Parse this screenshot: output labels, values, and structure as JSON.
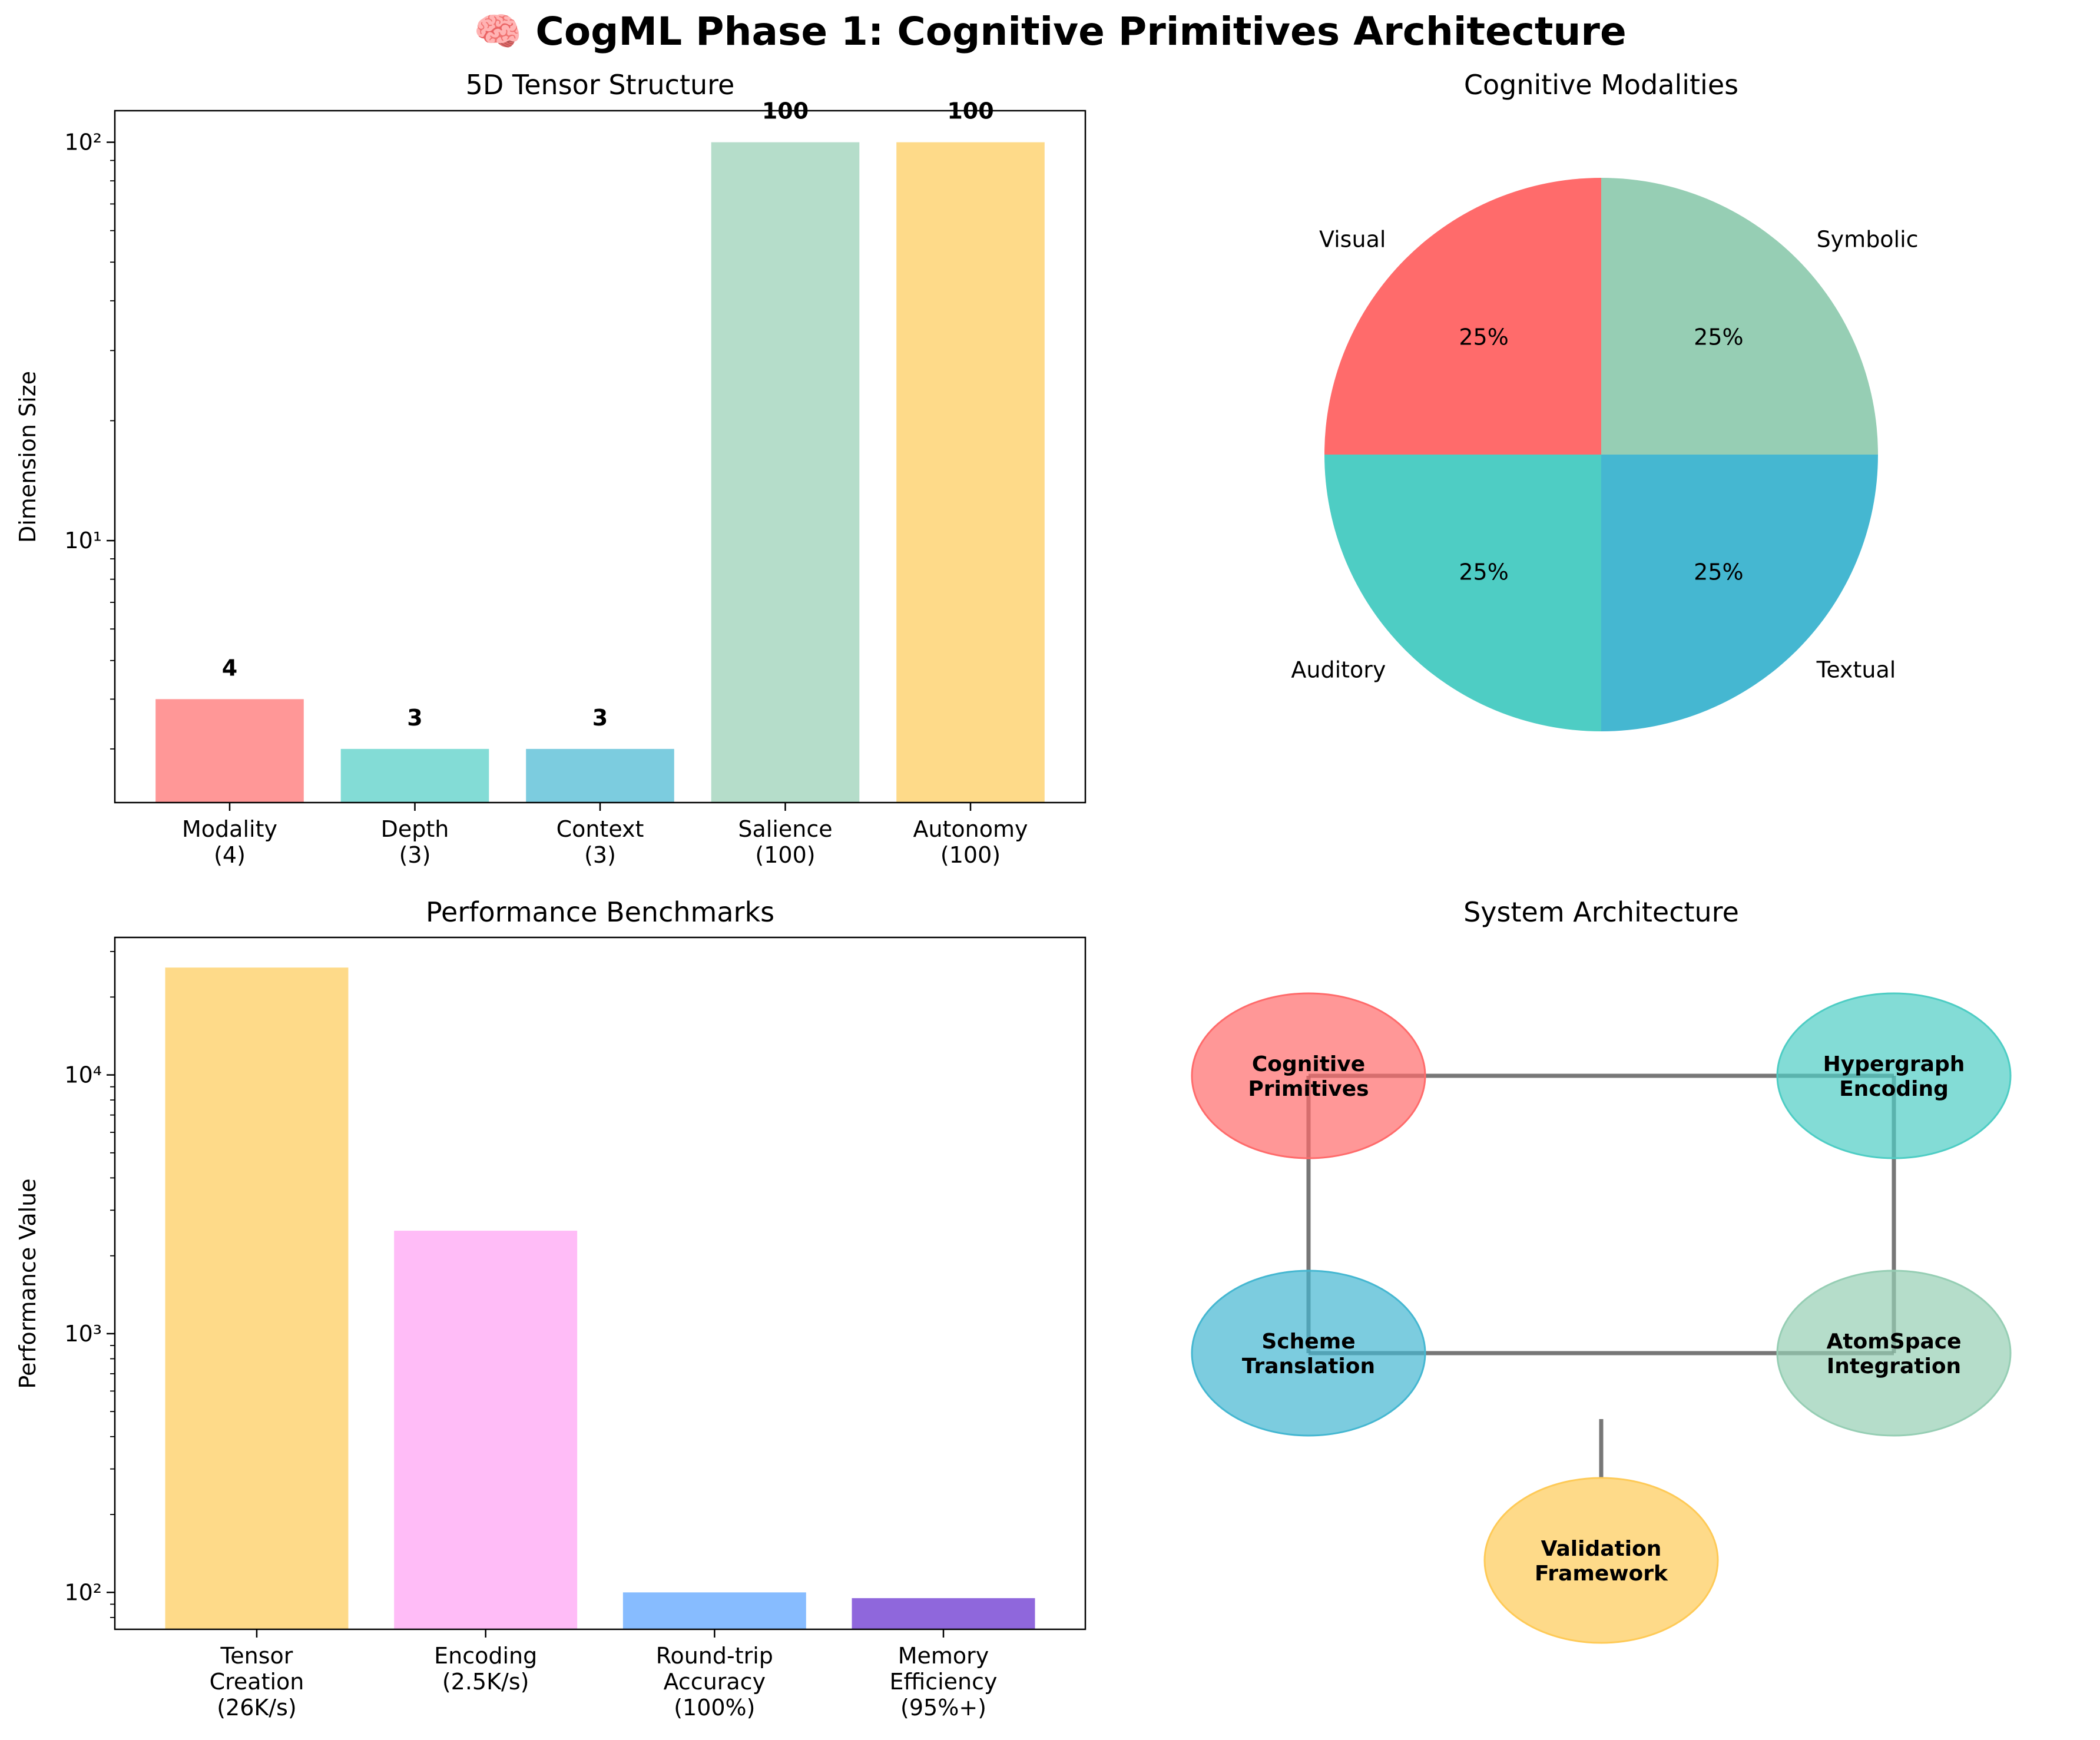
{
  "figure": {
    "suptitle": "🧠 CogML Phase 1: Cognitive Primitives Architecture"
  },
  "chart_data": [
    {
      "type": "bar",
      "title": "5D Tensor Structure",
      "xlabel": "",
      "ylabel": "Dimension Size",
      "yscale": "log",
      "ylim": [
        2.2,
        120
      ],
      "yticks": [
        {
          "value": 10,
          "label": "10¹"
        },
        {
          "value": 100,
          "label": "10²"
        }
      ],
      "categories": [
        "Modality\n(4)",
        "Depth\n(3)",
        "Context\n(3)",
        "Salience\n(100)",
        "Autonomy\n(100)"
      ],
      "values": [
        4,
        3,
        3,
        100,
        100
      ],
      "value_labels": [
        "4",
        "3",
        "3",
        "100",
        "100"
      ],
      "colors": [
        "#FF6B6B",
        "#4ECDC4",
        "#45B7D1",
        "#96CEB4",
        "#FECA57"
      ],
      "alpha": 0.7
    },
    {
      "type": "pie",
      "title": "Cognitive Modalities",
      "labels": [
        "Visual",
        "Auditory",
        "Textual",
        "Symbolic"
      ],
      "values": [
        25,
        25,
        25,
        25
      ],
      "pct_labels": [
        "25%",
        "25%",
        "25%",
        "25%"
      ],
      "colors": [
        "#FF6B6B",
        "#4ECDC4",
        "#45B7D1",
        "#96CEB4"
      ],
      "startangle": 90
    },
    {
      "type": "bar",
      "title": "Performance Benchmarks",
      "xlabel": "",
      "ylabel": "Performance Value",
      "yscale": "log",
      "ylim": [
        72,
        34000
      ],
      "yticks": [
        {
          "value": 100,
          "label": "10²"
        },
        {
          "value": 1000,
          "label": "10³"
        },
        {
          "value": 10000,
          "label": "10⁴"
        }
      ],
      "categories": [
        "Tensor\nCreation\n(26K/s)",
        "Encoding\n(2.5K/s)",
        "Round-trip\nAccuracy\n(100%)",
        "Memory\nEfficiency\n(95%+)"
      ],
      "values": [
        26000,
        2500,
        100,
        95
      ],
      "colors": [
        "#FECA57",
        "#FF9FF3",
        "#54A0FF",
        "#5F27CD"
      ],
      "alpha": [
        0.7,
        0.7,
        0.7,
        0.7
      ]
    },
    {
      "type": "diagram",
      "title": "System Architecture",
      "nodes": [
        {
          "id": "cognitive-primitives",
          "label": "Cognitive\nPrimitives",
          "color": "#FF6B6B"
        },
        {
          "id": "hypergraph-encoding",
          "label": "Hypergraph\nEncoding",
          "color": "#4ECDC4"
        },
        {
          "id": "scheme-translation",
          "label": "Scheme\nTranslation",
          "color": "#45B7D1"
        },
        {
          "id": "atomspace-integration",
          "label": "AtomSpace\nIntegration",
          "color": "#96CEB4"
        },
        {
          "id": "validation-framework",
          "label": "Validation\nFramework",
          "color": "#FECA57"
        }
      ],
      "edges": [
        [
          "cognitive-primitives",
          "hypergraph-encoding"
        ],
        [
          "hypergraph-encoding",
          "atomspace-integration"
        ],
        [
          "atomspace-integration",
          "scheme-translation"
        ],
        [
          "scheme-translation",
          "cognitive-primitives"
        ]
      ],
      "edge_color": "#555555"
    }
  ]
}
